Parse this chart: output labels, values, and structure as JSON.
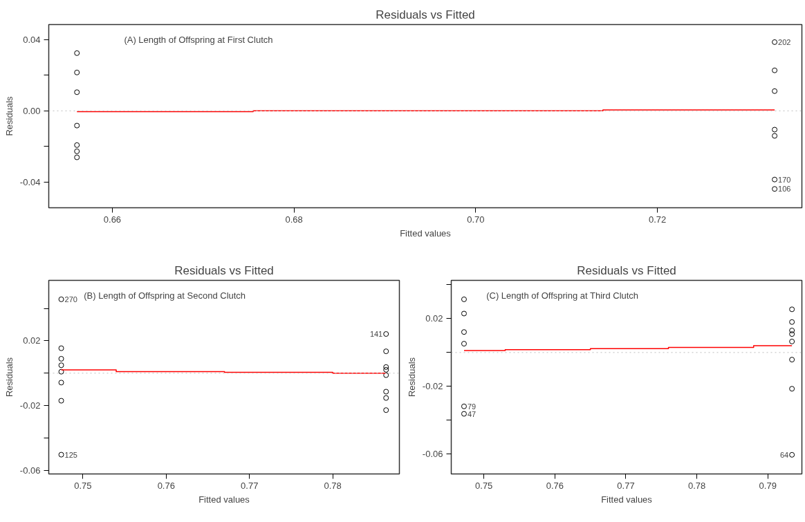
{
  "chart_data": [
    {
      "type": "scatter",
      "title": "Residuals vs Fitted",
      "xlabel": "Fitted values",
      "ylabel": "Residuals",
      "marker": "circle",
      "grid": false,
      "annotations": [
        "(A) Length of Offspring at First Clutch",
        {
          "text": "202",
          "x": 0.7329,
          "y": 0.0387
        },
        {
          "text": "170",
          "x": 0.7329,
          "y": -0.0387
        },
        {
          "text": "106",
          "x": 0.7329,
          "y": -0.044
        }
      ],
      "xlim": [
        0.653,
        0.7359
      ],
      "ylim": [
        -0.0546,
        0.0486
      ],
      "xticks": [
        0.66,
        0.68,
        {
          "value": 0.7,
          "label": "0.70"
        },
        0.72
      ],
      "yticks": [
        -0.04,
        {
          "value": -0.02,
          "label": null
        },
        {
          "value": 0,
          "label": "0.00"
        },
        {
          "value": 0.02,
          "label": null
        },
        0.04
      ],
      "ref_lines": [
        {
          "axis": "y",
          "value": 0,
          "color": "#bebebe",
          "line_style": "dotted"
        }
      ],
      "series": [
        {
          "type": "scatter",
          "color": "#000000",
          "x": [
            0.6561,
            0.6561,
            0.6561,
            0.6561,
            0.6561,
            0.6561,
            0.6561,
            0.7329,
            0.7329,
            0.7329,
            0.7329,
            0.7329,
            0.7329,
            0.7329
          ],
          "values": [
            0.0325,
            0.0216,
            0.0105,
            -0.0083,
            -0.0193,
            -0.0228,
            -0.0262,
            0.0387,
            0.0228,
            0.0111,
            -0.0106,
            -0.0141,
            -0.0387,
            -0.044
          ]
        },
        {
          "type": "line",
          "marker": "none",
          "color": "#ff0000",
          "x": [
            0.6561,
            0.6755,
            0.6755,
            0.714,
            0.714,
            0.7329
          ],
          "values": [
            -0.0005,
            -0.0005,
            0,
            0,
            0.0005,
            0.0005
          ]
        }
      ]
    },
    {
      "type": "scatter",
      "title": "Residuals vs Fitted",
      "xlabel": "Fitted values",
      "ylabel": "Residuals",
      "marker": "circle",
      "grid": false,
      "annotations": [
        "(B) Length of Offspring at Second Clutch",
        {
          "text": "270",
          "x": 0.7474,
          "y": 0.0456
        },
        {
          "text": "125",
          "x": 0.7474,
          "y": -0.0503
        },
        {
          "text": "141",
          "x": 0.7864,
          "y": 0.0242
        }
      ],
      "xlim": [
        0.7459,
        0.788
      ],
      "ylim": [
        -0.0622,
        0.0573
      ],
      "xticks": [
        0.75,
        0.76,
        0.77,
        0.78
      ],
      "yticks": [
        -0.06,
        {
          "value": -0.04,
          "label": null
        },
        -0.02,
        {
          "value": 0,
          "label": null
        },
        0.02,
        {
          "value": 0.04,
          "label": null
        }
      ],
      "ref_lines": [
        {
          "axis": "y",
          "value": 0,
          "color": "#bebebe",
          "line_style": "dotted"
        }
      ],
      "series": [
        {
          "type": "scatter",
          "color": "#000000",
          "x": [
            0.7474,
            0.7474,
            0.7474,
            0.7474,
            0.7474,
            0.7474,
            0.7474,
            0.7474,
            0.7864,
            0.7864,
            0.7864,
            0.7864,
            0.7864,
            0.7864,
            0.7864,
            0.7864
          ],
          "values": [
            0.0456,
            0.0154,
            0.0089,
            0.0049,
            0.0009,
            -0.0058,
            -0.017,
            -0.0503,
            0.0242,
            0.0135,
            0.0038,
            0.0021,
            -0.0012,
            -0.0114,
            -0.0153,
            -0.0228
          ]
        },
        {
          "type": "line",
          "marker": "none",
          "color": "#ff0000",
          "x": [
            0.7474,
            0.754,
            0.754,
            0.767,
            0.767,
            0.78,
            0.78,
            0.7864
          ],
          "values": [
            0.002,
            0.002,
            0.001,
            0.001,
            0.0005,
            0.0005,
            0,
            0
          ]
        }
      ]
    },
    {
      "type": "scatter",
      "title": "Residuals vs Fitted",
      "xlabel": "Fitted values",
      "ylabel": "Residuals",
      "marker": "circle",
      "grid": false,
      "annotations": [
        "(C) Length of Offspring at Third Clutch",
        {
          "text": "79",
          "x": 0.7472,
          "y": -0.0318
        },
        {
          "text": "47",
          "x": 0.7472,
          "y": -0.0362
        },
        {
          "text": "64",
          "x": 0.7934,
          "y": -0.0604
        }
      ],
      "xlim": [
        0.7454,
        0.7948
      ],
      "ylim": [
        -0.0717,
        0.0426
      ],
      "xticks": [
        0.75,
        0.76,
        0.77,
        0.78,
        0.79
      ],
      "yticks": [
        -0.06,
        {
          "value": -0.04,
          "label": null
        },
        -0.02,
        {
          "value": 0,
          "label": null
        },
        0.02,
        {
          "value": 0.04,
          "label": null
        }
      ],
      "ref_lines": [
        {
          "axis": "y",
          "value": 0,
          "color": "#bebebe",
          "line_style": "dotted"
        }
      ],
      "series": [
        {
          "type": "scatter",
          "color": "#000000",
          "x": [
            0.7472,
            0.7472,
            0.7472,
            0.7472,
            0.7472,
            0.7472,
            0.7934,
            0.7934,
            0.7934,
            0.7934,
            0.7934,
            0.7934,
            0.7934,
            0.7934
          ],
          "values": [
            0.0314,
            0.023,
            0.0121,
            0.0052,
            -0.0318,
            -0.0362,
            0.0255,
            0.018,
            0.013,
            0.0109,
            0.0065,
            -0.0042,
            -0.0214,
            -0.0604
          ]
        },
        {
          "type": "line",
          "marker": "none",
          "color": "#ff0000",
          "x": [
            0.7472,
            0.753,
            0.753,
            0.765,
            0.765,
            0.776,
            0.776,
            0.788,
            0.788,
            0.7934
          ],
          "values": [
            0.0012,
            0.0012,
            0.0017,
            0.0017,
            0.0023,
            0.0023,
            0.003,
            0.003,
            0.004,
            0.004
          ]
        }
      ]
    }
  ]
}
